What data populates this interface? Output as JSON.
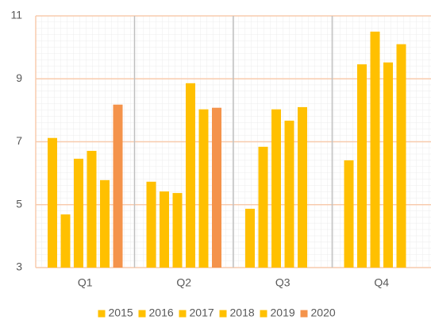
{
  "chart_data": {
    "type": "bar",
    "categories": [
      "Q1",
      "Q2",
      "Q3",
      "Q4"
    ],
    "series": [
      {
        "name": "2015",
        "color": "#FFC000",
        "values": [
          7.12,
          5.73,
          4.87,
          6.41
        ]
      },
      {
        "name": "2016",
        "color": "#FFC000",
        "values": [
          4.69,
          5.42,
          6.84,
          9.46
        ]
      },
      {
        "name": "2017",
        "color": "#FFC000",
        "values": [
          6.46,
          5.37,
          8.03,
          10.5
        ]
      },
      {
        "name": "2018",
        "color": "#FFC000",
        "values": [
          6.71,
          8.86,
          7.67,
          9.52
        ]
      },
      {
        "name": "2019",
        "color": "#FFC000",
        "values": [
          5.78,
          8.03,
          8.1,
          10.1
        ]
      },
      {
        "name": "2020",
        "color": "#F4934B",
        "values": [
          8.18,
          8.08,
          null,
          null
        ]
      }
    ],
    "ylim": [
      3,
      11
    ],
    "yticks": [
      3,
      5,
      7,
      9,
      11
    ],
    "grid": true,
    "legend": "bottom"
  }
}
